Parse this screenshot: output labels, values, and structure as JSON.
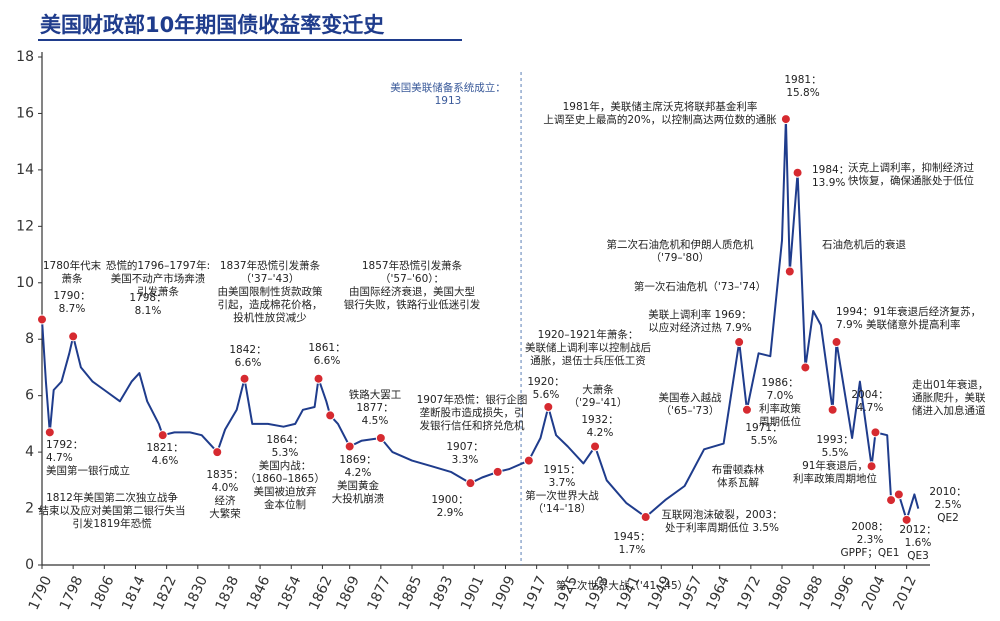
{
  "chart_data": {
    "type": "line",
    "title": "美国财政部10年期国债收益率变迁史",
    "x": [
      1790,
      1791,
      1792,
      1793,
      1795,
      1797,
      1798,
      1800,
      1803,
      1806,
      1810,
      1813,
      1815,
      1817,
      1820,
      1821,
      1824,
      1828,
      1831,
      1835,
      1837,
      1840,
      1842,
      1844,
      1848,
      1852,
      1855,
      1857,
      1860,
      1861,
      1863,
      1864,
      1866,
      1869,
      1872,
      1877,
      1880,
      1885,
      1890,
      1895,
      1900,
      1903,
      1907,
      1910,
      1915,
      1918,
      1920,
      1922,
      1925,
      1929,
      1932,
      1935,
      1940,
      1945,
      1950,
      1955,
      1960,
      1965,
      1969,
      1971,
      1974,
      1977,
      1980,
      1981,
      1982,
      1984,
      1986,
      1988,
      1990,
      1993,
      1994,
      1998,
      2000,
      2003,
      2004,
      2007,
      2008,
      2010,
      2012,
      2014,
      2015
    ],
    "series": [
      {
        "name": "10年期国债收益率",
        "color": "#1f3c8c",
        "values": [
          8.7,
          6.5,
          4.7,
          6.2,
          6.5,
          7.5,
          8.1,
          7.0,
          6.5,
          6.2,
          5.8,
          6.5,
          6.8,
          5.8,
          5.0,
          4.6,
          4.7,
          4.7,
          4.6,
          4.0,
          4.8,
          5.5,
          6.6,
          5.0,
          5.0,
          4.9,
          5.0,
          5.5,
          5.6,
          6.6,
          5.8,
          5.3,
          5.0,
          4.2,
          4.4,
          4.5,
          4.0,
          3.7,
          3.5,
          3.3,
          2.9,
          3.1,
          3.3,
          3.4,
          3.7,
          4.5,
          5.6,
          4.6,
          4.2,
          3.6,
          4.2,
          3.0,
          2.2,
          1.7,
          2.3,
          2.8,
          4.1,
          4.3,
          7.9,
          5.5,
          7.5,
          7.4,
          11.5,
          15.8,
          10.4,
          13.9,
          7.0,
          9.0,
          8.5,
          5.5,
          7.9,
          4.5,
          6.5,
          3.5,
          4.7,
          4.6,
          2.3,
          2.5,
          1.6,
          2.5,
          2.0
        ]
      }
    ],
    "xlim": [
      1790,
      2018
    ],
    "ylim": [
      0,
      18
    ],
    "xticks": [
      1790,
      1798,
      1806,
      1814,
      1822,
      1830,
      1838,
      1846,
      1854,
      1862,
      1869,
      1877,
      1885,
      1893,
      1901,
      1909,
      1917,
      1925,
      1933,
      1941,
      1949,
      1957,
      1964,
      1972,
      1980,
      1988,
      1996,
      2004,
      2012
    ],
    "yticks": [
      0,
      2,
      4,
      6,
      8,
      10,
      12,
      14,
      16,
      18
    ],
    "dot_color": "#d62a30",
    "fed_line": {
      "x": 1913,
      "lines": [
        "美国美联储备系统成立：",
        "1913"
      ]
    },
    "annotations": [
      {
        "lines": [
          "1780年代末",
          "萧条"
        ]
      },
      {
        "lines": [
          "1790：",
          "8.7%"
        ],
        "x": 1790,
        "y": 8.7
      },
      {
        "lines": [
          "恐慌的1796–1797年:",
          "美国不动产市场奔溃",
          "引发萧条"
        ]
      },
      {
        "lines": [
          "1798：",
          "8.1%"
        ],
        "x": 1798,
        "y": 8.1
      },
      {
        "lines": [
          "1792：",
          "4.7%",
          "美国第一银行成立"
        ],
        "x": 1792,
        "y": 4.7
      },
      {
        "lines": [
          "1812年美国第二次独立战争",
          "结束以及应对美国第二银行失当",
          "引发1819年恐慌"
        ]
      },
      {
        "lines": [
          "1821：",
          "4.6%"
        ],
        "x": 1821,
        "y": 4.6
      },
      {
        "lines": [
          "1837年恐慌引发萧条",
          "（'37–'43）",
          "由美国限制性货款政策",
          "引起，造成棉花价格，",
          "投机性放贷减少"
        ]
      },
      {
        "lines": [
          "1835：",
          "4.0%",
          "经济",
          "大繁荣"
        ],
        "x": 1835,
        "y": 4.0
      },
      {
        "lines": [
          "1842：",
          "6.6%"
        ],
        "x": 1842,
        "y": 6.6
      },
      {
        "lines": [
          "1857年恐慌引发萧条",
          "（'57–'60）：",
          "由国际经济衰退，美国大型",
          "银行失败，铁路行业低迷引发"
        ]
      },
      {
        "lines": [
          "1861：",
          "6.6%"
        ],
        "x": 1861,
        "y": 6.6
      },
      {
        "lines": [
          "1864：",
          "5.3%",
          "美国内战：",
          "（1860–1865）",
          "美国被迫放弃",
          "金本位制"
        ],
        "x": 1864,
        "y": 5.3
      },
      {
        "lines": [
          "铁路大罢工",
          "1877：",
          "4.5%"
        ],
        "x": 1877,
        "y": 4.5
      },
      {
        "lines": [
          "1869：",
          "4.2%",
          "美国黄金",
          "大投机崩溃"
        ],
        "x": 1869,
        "y": 4.2
      },
      {
        "lines": [
          "1907年恐慌：银行企图",
          "垄断股市造成损失，引",
          "发银行信任和挤兑危机"
        ]
      },
      {
        "lines": [
          "1907：",
          "3.3%"
        ],
        "x": 1907,
        "y": 3.3
      },
      {
        "lines": [
          "1900：",
          "2.9%"
        ],
        "x": 1900,
        "y": 2.9
      },
      {
        "lines": [
          "1920–1921年萧条：",
          "美联储上调利率以控制战后",
          "通胀，退伍士兵压低工资"
        ]
      },
      {
        "lines": [
          "1920：",
          "5.6%"
        ],
        "x": 1920,
        "y": 5.6
      },
      {
        "lines": [
          "大萧条",
          "（'29–'41）"
        ]
      },
      {
        "lines": [
          "1932：",
          "4.2%"
        ],
        "x": 1932,
        "y": 4.2
      },
      {
        "lines": [
          "1915：",
          "3.7%",
          "第一次世界大战",
          "（'14–'18）"
        ],
        "x": 1915,
        "y": 3.7
      },
      {
        "lines": [
          "1945：",
          "1.7%"
        ],
        "x": 1945,
        "y": 1.7
      },
      {
        "lines": [
          "第二次世界大战（'41–'45）"
        ]
      },
      {
        "lines": [
          "互联网泡沫破裂，2003：",
          "处于利率周期低位  3.5%"
        ],
        "x": 2003,
        "y": 3.5
      },
      {
        "lines": [
          "布雷顿森林",
          "体系瓦解"
        ]
      },
      {
        "lines": [
          "1971：",
          "5.5%"
        ],
        "x": 1971,
        "y": 5.5
      },
      {
        "lines": [
          "美国卷入越战",
          "（'65–'73）"
        ]
      },
      {
        "lines": [
          "美联上调利率  1969：",
          "以应对经济过热  7.9%"
        ],
        "x": 1969,
        "y": 7.9
      },
      {
        "lines": [
          "第一次石油危机（'73–'74）"
        ]
      },
      {
        "lines": [
          "第二次石油危机和伊朗人质危机",
          "（'79–'80）"
        ]
      },
      {
        "lines": [
          "1981年，美联储主席沃克将联邦基金利率",
          "上调至史上最高的20%，以控制高达两位数的通胀"
        ]
      },
      {
        "lines": [
          "1981：",
          "15.8%"
        ],
        "x": 1981,
        "y": 15.8
      },
      {
        "lines": [
          "1984：",
          "13.9%"
        ],
        "x": 1984,
        "y": 13.9
      },
      {
        "lines": [
          "沃克上调利率，抑制经济过",
          "快恢复，确保通胀处于低位"
        ]
      },
      {
        "lines": [
          "石油危机后的衰退"
        ],
        "x": 1982,
        "y": 10.4
      },
      {
        "lines": [
          "1994：91年衰退后经济复苏，",
          "7.9%  美联储意外提高利率"
        ],
        "x": 1994,
        "y": 7.9
      },
      {
        "lines": [
          "1986：",
          "7.0%",
          "利率政策",
          "周期低位"
        ],
        "x": 1986,
        "y": 7.0
      },
      {
        "lines": [
          "1993：",
          "5.5%",
          "91年衰退后，",
          "利率政策周期地位"
        ],
        "x": 1993,
        "y": 5.5
      },
      {
        "lines": [
          "2004：",
          "4.7%"
        ],
        "x": 2004,
        "y": 4.7
      },
      {
        "lines": [
          "走出01年衰退，",
          "通胀爬升，美联",
          "储进入加息通道"
        ]
      },
      {
        "lines": [
          "2008：",
          "2.3%",
          "GPPF；QE1"
        ],
        "x": 2008,
        "y": 2.3
      },
      {
        "lines": [
          "2010：",
          "2.5%",
          "QE2"
        ],
        "x": 2010,
        "y": 2.5
      },
      {
        "lines": [
          "2012：",
          "1.6%",
          "QE3"
        ],
        "x": 2012,
        "y": 1.6
      }
    ]
  }
}
